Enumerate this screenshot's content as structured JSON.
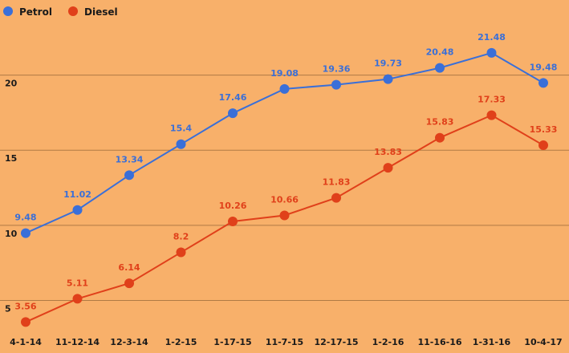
{
  "chart_data": {
    "type": "line",
    "categories": [
      "4-1-14",
      "11-12-14",
      "12-3-14",
      "1-2-15",
      "1-17-15",
      "11-7-15",
      "12-17-15",
      "1-2-16",
      "11-16-16",
      "1-31-16",
      "10-4-17"
    ],
    "series": [
      {
        "name": "Petrol",
        "color": "#3a6fd8",
        "values": [
          9.48,
          11.02,
          13.34,
          15.4,
          17.46,
          19.08,
          19.36,
          19.73,
          20.48,
          21.48,
          19.48
        ],
        "labels": [
          "9.48",
          "11.02",
          "13.34",
          "15.4",
          "17.46",
          "19.08",
          "19.36",
          "19.73",
          "20.48",
          "21.48",
          "19.48"
        ]
      },
      {
        "name": "Diesel",
        "color": "#e0401a",
        "values": [
          3.56,
          5.11,
          6.14,
          8.2,
          10.26,
          10.66,
          11.83,
          13.83,
          15.83,
          17.33,
          15.33
        ],
        "labels": [
          "3.56",
          "5.11",
          "6.14",
          "8.2",
          "10.26",
          "10.66",
          "11.83",
          "13.83",
          "15.83",
          "17.33",
          "15.33"
        ]
      }
    ],
    "yticks": [
      {
        "value": 5,
        "label": "5"
      },
      {
        "value": 10,
        "label": "10"
      },
      {
        "value": 15,
        "label": "15"
      },
      {
        "value": 20,
        "label": "20"
      }
    ],
    "ylim": [
      1.5,
      25
    ],
    "grid": true,
    "legend_position": "top-left",
    "title": "",
    "xlabel": "",
    "ylabel": ""
  }
}
